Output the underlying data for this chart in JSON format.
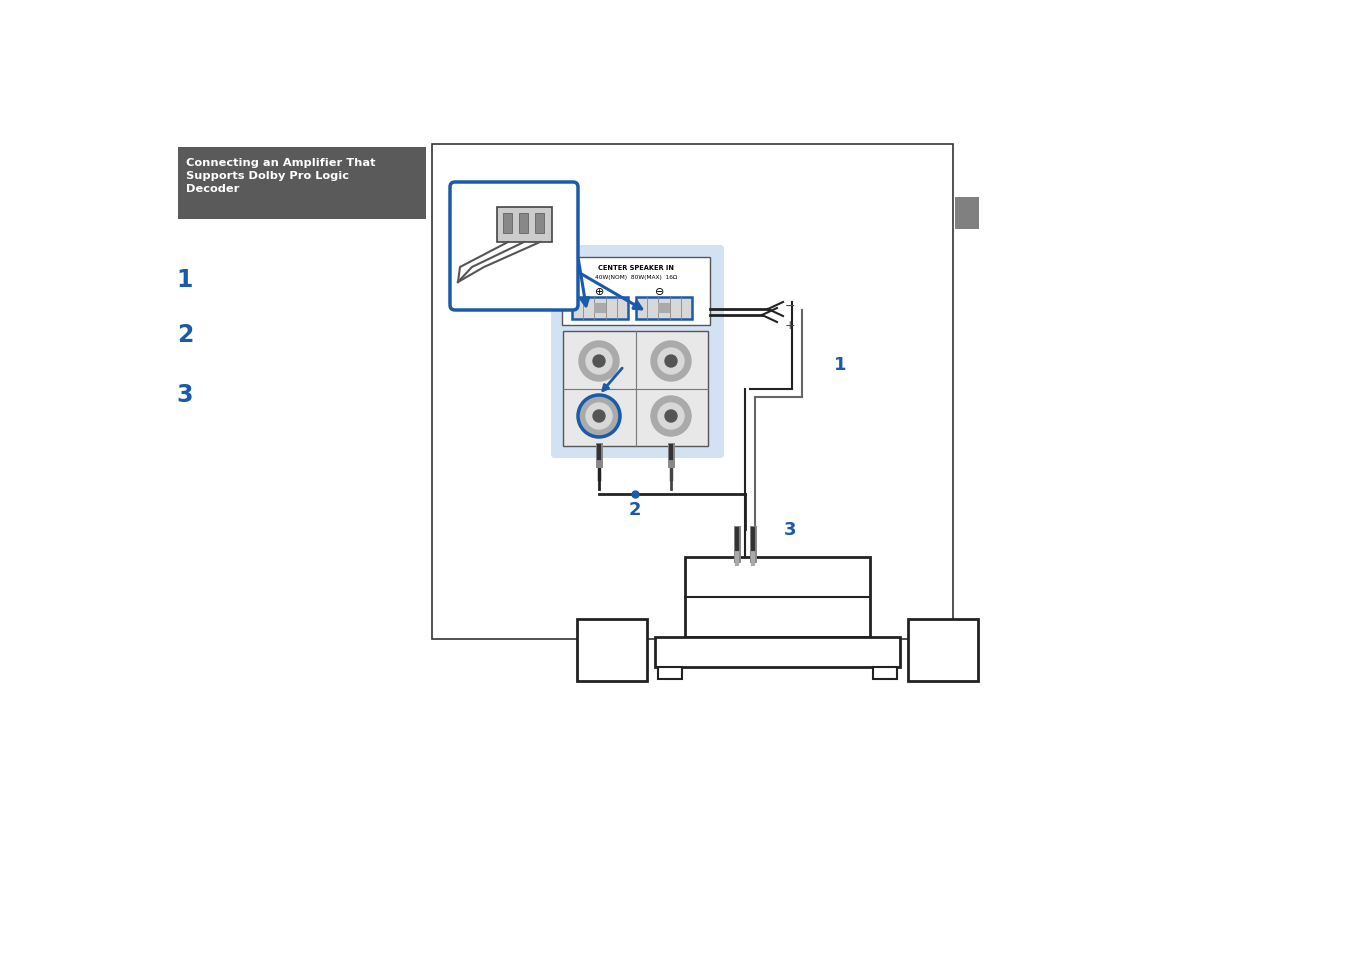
{
  "bg_color": "#ffffff",
  "title_text": "Connecting an Amplifier That\nSupports Dolby Pro Logic\nDecoder",
  "title_bg": "#5a5a5a",
  "title_fg": "#ffffff",
  "blue": "#1a5aaa",
  "light_blue_bg": "#c5d9f0",
  "sidebar_color": "#808080",
  "figsize": [
    13.48,
    9.54
  ],
  "dpi": 100
}
